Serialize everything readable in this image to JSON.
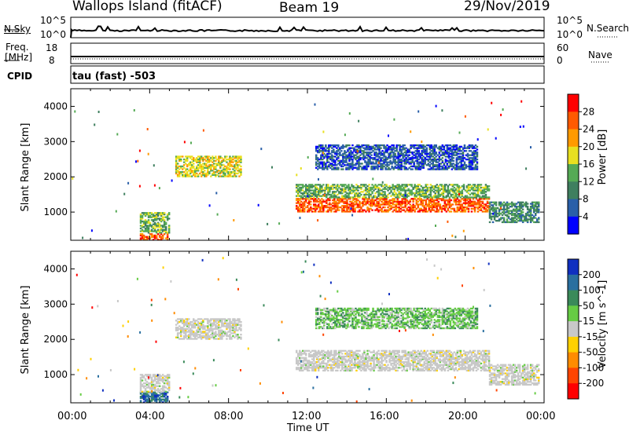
{
  "header": {
    "title": "Wallops Island (fitACF)",
    "beam": "Beam 19",
    "date": "29/Nov/2019"
  },
  "noise_panel": {
    "left_label": "N.Sky",
    "right_label": "N.Search",
    "left_ticks": [
      "10^5",
      "10^0"
    ],
    "right_ticks": [
      "10^5",
      "10^0"
    ]
  },
  "freq_panel": {
    "left_label_line1": "Freq.",
    "left_label_line2": "[MHz]",
    "right_label": "Nave",
    "left_ticks": [
      "18",
      "8"
    ],
    "right_ticks": [
      "60",
      "0"
    ]
  },
  "cpid": {
    "label": "CPID",
    "value": "tau (fast) -503"
  },
  "colors": {
    "power_scale": [
      "#0000ff",
      "#2a5fa8",
      "#3f7f5f",
      "#55aa55",
      "#e8e020",
      "#ff9a00",
      "#ff5a00",
      "#ff0000"
    ],
    "velocity_scale": [
      "#1030c0",
      "#2a6f9f",
      "#3a8a5a",
      "#66cc44",
      "#c8c8c8",
      "#ffd000",
      "#ff8c00",
      "#ff4500",
      "#ff0000"
    ],
    "ground_scatter": "#c8c8c8"
  },
  "chart_data": [
    {
      "type": "heatmap",
      "name": "power",
      "ylabel": "Slant Range [km]",
      "yticks": [
        "1000",
        "2000",
        "3000",
        "4000"
      ],
      "ylim": [
        200,
        4500
      ],
      "xlim": [
        0,
        24
      ],
      "colorbar_label": "Power [dB]",
      "colorbar_ticks": [
        "4",
        "8",
        "12",
        "16",
        "20",
        "24",
        "28"
      ],
      "regions": [
        {
          "t0": 3.5,
          "t1": 4.9,
          "r0": 200,
          "r1": 400,
          "level": 6
        },
        {
          "t0": 3.5,
          "t1": 5.0,
          "r0": 400,
          "r1": 1000,
          "level": 3
        },
        {
          "t0": 5.3,
          "t1": 8.6,
          "r0": 2000,
          "r1": 2600,
          "level": 4
        },
        {
          "t0": 11.4,
          "t1": 21.2,
          "r0": 1000,
          "r1": 1400,
          "level": 6
        },
        {
          "t0": 11.4,
          "t1": 21.2,
          "r0": 1400,
          "r1": 1800,
          "level": 3
        },
        {
          "t0": 21.2,
          "t1": 23.7,
          "r0": 700,
          "r1": 1300,
          "level": 2
        },
        {
          "t0": 12.4,
          "t1": 20.6,
          "r0": 2200,
          "r1": 2900,
          "level": 1
        }
      ]
    },
    {
      "type": "heatmap",
      "name": "velocity",
      "ylabel": "Slant Range [km]",
      "yticks": [
        "1000",
        "2000",
        "3000",
        "4000"
      ],
      "ylim": [
        200,
        4500
      ],
      "xlim": [
        0,
        24
      ],
      "xticks": [
        "00:00",
        "04:00",
        "08:00",
        "12:00",
        "16:00",
        "20:00",
        "00:00"
      ],
      "xlabel": "Time UT",
      "colorbar_label": "Velocity [m s^-1]",
      "colorbar_ticks": [
        "200",
        "100",
        "50",
        "15",
        "-15",
        "-50",
        "-100",
        "-200"
      ],
      "regions": [
        {
          "t0": 3.5,
          "t1": 4.9,
          "r0": 200,
          "r1": 500,
          "level": 1
        },
        {
          "t0": 3.5,
          "t1": 5.0,
          "r0": 500,
          "r1": 1000,
          "level": 4
        },
        {
          "t0": 5.3,
          "t1": 8.6,
          "r0": 2000,
          "r1": 2600,
          "level": 4
        },
        {
          "t0": 11.4,
          "t1": 21.2,
          "r0": 1100,
          "r1": 1700,
          "level": 4
        },
        {
          "t0": 21.2,
          "t1": 23.7,
          "r0": 700,
          "r1": 1300,
          "level": 4
        },
        {
          "t0": 12.4,
          "t1": 20.6,
          "r0": 2300,
          "r1": 2900,
          "level": 3
        }
      ]
    }
  ]
}
